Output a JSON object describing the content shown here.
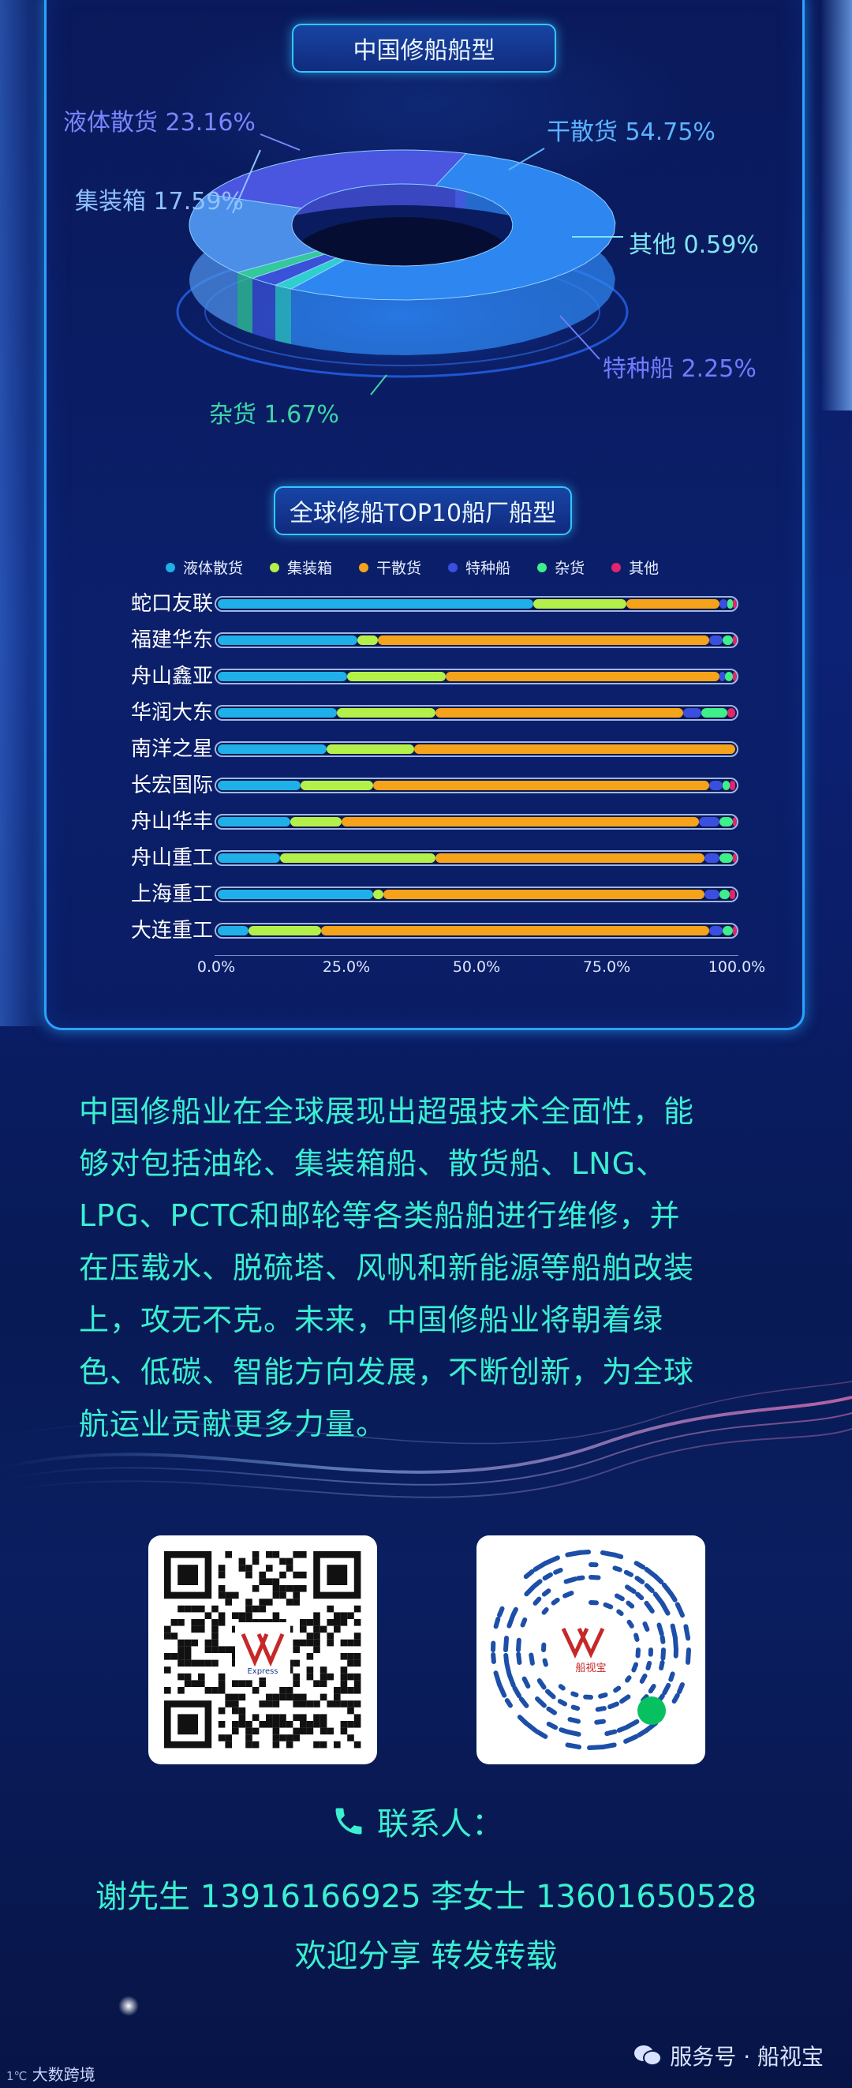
{
  "section1": {
    "title": "中国修船船型"
  },
  "section2": {
    "title": "全球修船TOP10船厂船型"
  },
  "chart_data": [
    {
      "type": "pie",
      "title": "中国修船船型",
      "slices": [
        {
          "name": "干散货",
          "value": 54.75,
          "label": "54.75%",
          "color": "#2e86f0"
        },
        {
          "name": "液体散货",
          "value": 23.16,
          "label": "23.16%",
          "color": "#4a55e0"
        },
        {
          "name": "集装箱",
          "value": 17.59,
          "label": "17.59%",
          "color": "#4c8fe8"
        },
        {
          "name": "特种船",
          "value": 2.25,
          "label": "2.25%",
          "color": "#3a52d8"
        },
        {
          "name": "杂货",
          "value": 1.67,
          "label": "1.67%",
          "color": "#33c99a"
        },
        {
          "name": "其他",
          "value": 0.59,
          "label": "0.59%",
          "color": "#2fcfd0"
        }
      ]
    },
    {
      "type": "bar",
      "title": "全球修船TOP10船厂船型",
      "stacked": true,
      "orientation": "horizontal",
      "categories": [
        "蛇口友联",
        "福建华东",
        "舟山鑫亚",
        "华润大东",
        "南洋之星",
        "长宏国际",
        "舟山华丰",
        "舟山重工",
        "上海重工",
        "大连重工"
      ],
      "series": [
        {
          "name": "液体散货",
          "color": "#1fb0ea",
          "values": [
            61,
            27,
            25,
            23,
            21,
            16,
            14,
            12,
            30,
            6
          ]
        },
        {
          "name": "集装箱",
          "color": "#b4f04a",
          "values": [
            18,
            4,
            19,
            19,
            17,
            14,
            10,
            30,
            2,
            14
          ]
        },
        {
          "name": "干散货",
          "color": "#f5a31a",
          "values": [
            18,
            64,
            53,
            48,
            62,
            65,
            69,
            52,
            62,
            75
          ]
        },
        {
          "name": "特种船",
          "color": "#3a4fe0",
          "values": [
            1.5,
            2.5,
            1,
            3.5,
            0,
            2.5,
            4,
            3,
            3,
            2.5
          ]
        },
        {
          "name": "杂货",
          "color": "#3ef08a",
          "values": [
            1,
            2,
            1.5,
            5,
            0,
            1.5,
            2.5,
            2.5,
            2,
            2
          ]
        },
        {
          "name": "其他",
          "color": "#e0256e",
          "values": [
            0.5,
            0.5,
            0.5,
            1.5,
            0,
            1,
            0.5,
            0.5,
            1,
            0.5
          ]
        }
      ],
      "xticks": [
        "0.0%",
        "25.0%",
        "50.0%",
        "75.0%",
        "100.0%"
      ],
      "xlim": [
        0,
        100
      ],
      "legend": "top"
    }
  ],
  "body": {
    "lines": [
      "中国修船业在全球展现出超强技术全面性，能",
      "够对包括油轮、集装箱船、散货船、LNG、",
      "LPG、PCTC和邮轮等各类船舶进行维修，并",
      "在压载水、脱硫塔、风帆和新能源等船舶改装",
      "上，攻无不克。未来，中国修船业将朝着绿",
      "色、低碳、智能方向发展，不断创新，为全球",
      "航运业贡献更多力量。"
    ]
  },
  "qr": {
    "logo_left": "Express",
    "logo_right": "船视宝"
  },
  "contact": {
    "title": "联系人：",
    "people": "谢先生 13916166925    李女士 13601650528",
    "share": "欢迎分享   转发转载"
  },
  "footer": {
    "left": "大数跨境",
    "right": "服务号 · 船视宝"
  },
  "colors": {
    "accent": "#3af0d0",
    "frame": "#2aa3ff"
  }
}
